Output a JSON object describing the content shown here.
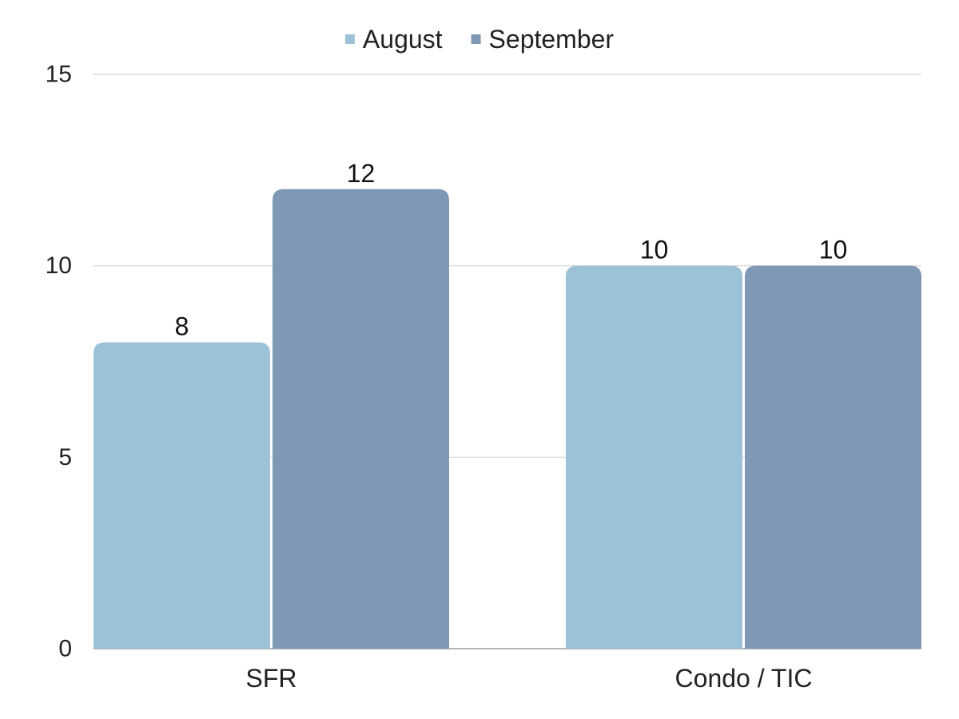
{
  "chart_data": {
    "type": "bar",
    "categories": [
      "SFR",
      "Condo / TIC"
    ],
    "series": [
      {
        "name": "August",
        "values": [
          8,
          10
        ],
        "color": "#9cc2d7"
      },
      {
        "name": "September",
        "values": [
          12,
          10
        ],
        "color": "#7f98b5"
      }
    ],
    "ylim": [
      0,
      15
    ],
    "yticks": [
      0,
      5,
      10,
      15
    ],
    "grid": true,
    "legend": "top-center",
    "title": "",
    "xlabel": "",
    "ylabel": ""
  }
}
